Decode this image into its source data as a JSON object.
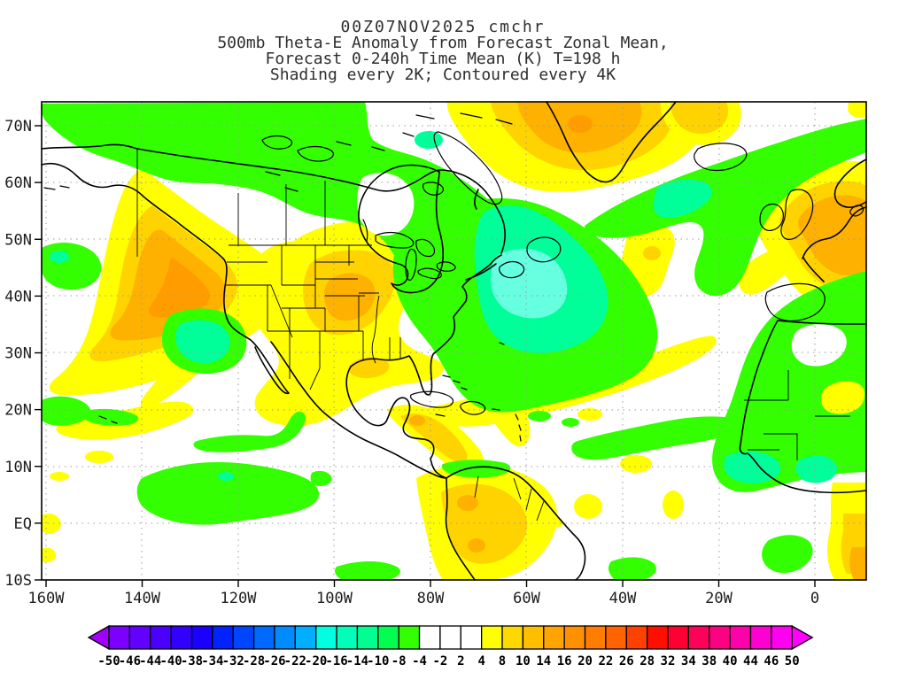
{
  "title": {
    "line1": "00Z07NOV2025 cmchr",
    "line2": "500mb Theta-E Anomaly from Forecast Zonal Mean,",
    "line3": "Forecast 0-240h Time Mean (K) T=198 h",
    "line4": "Shading every 2K; Contoured every 4K"
  },
  "axes": {
    "lat_ticks": [
      {
        "v": 70,
        "label": "70N"
      },
      {
        "v": 60,
        "label": "60N"
      },
      {
        "v": 50,
        "label": "50N"
      },
      {
        "v": 40,
        "label": "40N"
      },
      {
        "v": 30,
        "label": "30N"
      },
      {
        "v": 20,
        "label": "20N"
      },
      {
        "v": 10,
        "label": "10N"
      },
      {
        "v": 0,
        "label": "EQ"
      },
      {
        "v": -10,
        "label": "10S"
      }
    ],
    "lon_ticks": [
      {
        "v": -160,
        "label": "160W"
      },
      {
        "v": -140,
        "label": "140W"
      },
      {
        "v": -120,
        "label": "120W"
      },
      {
        "v": -100,
        "label": "100W"
      },
      {
        "v": -80,
        "label": "80W"
      },
      {
        "v": -60,
        "label": "60W"
      },
      {
        "v": -40,
        "label": "40W"
      },
      {
        "v": -20,
        "label": "20W"
      },
      {
        "v": 0,
        "label": "0"
      }
    ]
  },
  "palette": {
    "yellow": "#FFFF00",
    "gold": "#FFD300",
    "orange": "#FFB100",
    "orange_deep": "#FF9D00",
    "green": "#33FF00",
    "teal": "#00FF99",
    "cyan": "#66FFE0",
    "white": "#FFFFFF"
  },
  "colorbar": {
    "levels": [
      -50,
      -46,
      -44,
      -40,
      -38,
      -34,
      -32,
      -28,
      -26,
      -22,
      -20,
      -16,
      -14,
      -10,
      -8,
      -4,
      -2,
      2,
      4,
      8,
      10,
      14,
      16,
      20,
      22,
      26,
      28,
      32,
      34,
      38,
      40,
      44,
      46,
      50
    ],
    "segment_colors": [
      "#7D00FF",
      "#6400FF",
      "#4B00FF",
      "#3200FF",
      "#1900FF",
      "#0023FF",
      "#0046FF",
      "#0069FF",
      "#008CFF",
      "#00AFFF",
      "#00FFE1",
      "#00FFB9",
      "#00FF91",
      "#00FF50",
      "#33FF00",
      "#FFFFFF",
      "#FFFFFF",
      "#FFFFFF",
      "#FFFF00",
      "#FFD800",
      "#FFBE00",
      "#FFA400",
      "#FF9100",
      "#FF7D00",
      "#FF6400",
      "#FF4100",
      "#FF0F00",
      "#FF0032",
      "#FF005A",
      "#FF0082",
      "#FF00AA",
      "#FF00D2",
      "#FF00F0"
    ],
    "arrow_left_color": "#A000FF",
    "arrow_right_color": "#FF00FF"
  },
  "chart_data": {
    "type": "heatmap",
    "title": "500mb Theta-E Anomaly from Forecast Zonal Mean, Forecast 0-240h Time Mean (K) T=198 h",
    "run": "00Z07NOV2025",
    "model": "cmchr",
    "forecast_hour": 198,
    "units": "K",
    "shading_interval_K": 2,
    "contour_interval_K": 4,
    "x_axis": {
      "tick_labels": [
        "160W",
        "140W",
        "120W",
        "100W",
        "80W",
        "60W",
        "40W",
        "20W",
        "0"
      ],
      "range_deg_lon": [
        -161,
        11
      ]
    },
    "y_axis": {
      "tick_labels": [
        "70N",
        "60N",
        "50N",
        "40N",
        "30N",
        "20N",
        "10N",
        "EQ",
        "10S"
      ],
      "range_deg_lat": [
        -10,
        74
      ]
    },
    "colorbar_levels": [
      -50,
      -46,
      -44,
      -40,
      -38,
      -34,
      -32,
      -28,
      -26,
      -22,
      -20,
      -16,
      -14,
      -10,
      -8,
      -4,
      -2,
      2,
      4,
      8,
      10,
      14,
      16,
      20,
      22,
      26,
      28,
      32,
      34,
      38,
      40,
      44,
      46,
      50
    ],
    "colorbar_colors": [
      "#7D00FF",
      "#6400FF",
      "#4B00FF",
      "#3200FF",
      "#1900FF",
      "#0023FF",
      "#0046FF",
      "#0069FF",
      "#008CFF",
      "#00AFFF",
      "#00FFE1",
      "#00FFB9",
      "#00FF91",
      "#00FF50",
      "#33FF00",
      "#FFFFFF",
      "#FFFFFF",
      "#FFFFFF",
      "#FFFF00",
      "#FFD800",
      "#FFBE00",
      "#FFA400",
      "#FF9100",
      "#FF7D00",
      "#FF6400",
      "#FF4100",
      "#FF0F00",
      "#FF0032",
      "#FF005A",
      "#FF0082",
      "#FF00AA",
      "#FF00D2",
      "#FF00F0"
    ],
    "legend_position": "bottom",
    "grid": "dotted 10-degree latitude / 20-degree longitude",
    "features": [
      {
        "region": "Gulf of Alaska / British Columbia coast",
        "anomaly": "positive",
        "approx_peak_K": 16
      },
      {
        "region": "Northwest Greenland",
        "anomaly": "positive",
        "approx_peak_K": 14
      },
      {
        "region": "Scandinavia / North Sea",
        "anomaly": "positive",
        "approx_peak_K": 16
      },
      {
        "region": "US Rockies and central Plains",
        "anomaly": "positive",
        "approx_peak_K": 12
      },
      {
        "region": "Colombia / Venezuela and Central America",
        "anomaly": "positive",
        "approx_peak_K": 12
      },
      {
        "region": "Subtropical Atlantic bands and mid-Atlantic blob",
        "anomaly": "positive",
        "approx_peak_K": 8
      },
      {
        "region": "Arctic Canada / archipelago",
        "anomaly": "negative",
        "approx_peak_K": -8
      },
      {
        "region": "Eastern Canada and NW Atlantic (cyan core near Nova Scotia)",
        "anomaly": "negative",
        "approx_peak_K": -14
      },
      {
        "region": "Iceland / NE Atlantic band into UK approaches",
        "anomaly": "negative",
        "approx_peak_K": -10
      },
      {
        "region": "Iberia and West Africa / Sahel",
        "anomaly": "negative",
        "approx_peak_K": -10
      },
      {
        "region": "Pacific west of Baja California",
        "anomaly": "negative",
        "approx_peak_K": -10
      },
      {
        "region": "Tropical east Pacific patches",
        "anomaly": "negative",
        "approx_peak_K": -6
      }
    ]
  }
}
